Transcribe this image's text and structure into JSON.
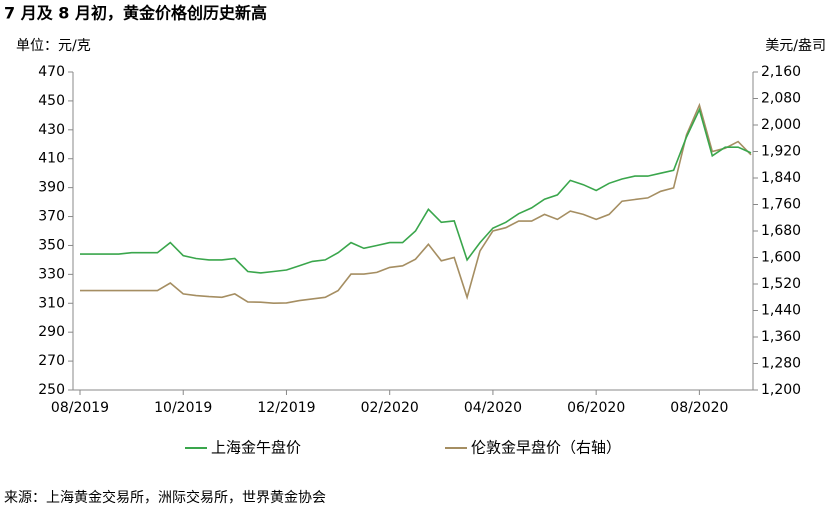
{
  "chart_data": {
    "type": "line",
    "title": "7 月及 8 月初，黄金价格创历史新高",
    "y_label": "单位：元/克",
    "y2_label": "美元/盎司",
    "source": "来源：上海黄金交易所，洲际交易所，世界黄金协会",
    "categories": [
      "08/2019",
      null,
      null,
      null,
      null,
      null,
      null,
      null,
      "10/2019",
      null,
      null,
      null,
      null,
      null,
      null,
      null,
      "12/2019",
      null,
      null,
      null,
      null,
      null,
      null,
      null,
      "02/2020",
      null,
      null,
      null,
      null,
      null,
      null,
      null,
      "04/2020",
      null,
      null,
      null,
      null,
      null,
      null,
      null,
      "06/2020",
      null,
      null,
      null,
      null,
      null,
      null,
      null,
      "08/2020",
      null,
      null,
      null,
      null
    ],
    "series": [
      {
        "name": "上海金午盘价",
        "color": "#3aa64c",
        "axis": "y",
        "values": [
          344,
          344,
          344,
          344,
          345,
          345,
          345,
          352,
          343,
          341,
          340,
          340,
          341,
          332,
          331,
          332,
          333,
          336,
          339,
          340,
          345,
          352,
          348,
          350,
          352,
          352,
          360,
          375,
          366,
          367,
          340,
          352,
          362,
          366,
          372,
          376,
          382,
          385,
          395,
          392,
          388,
          393,
          396,
          398,
          398,
          400,
          402,
          425,
          444,
          412,
          418,
          418,
          414
        ]
      },
      {
        "name": "伦敦金早盘价（右轴）",
        "color": "#a58e62",
        "axis": "y2",
        "values": [
          1500,
          1500,
          1500,
          1500,
          1500,
          1500,
          1500,
          1523,
          1490,
          1485,
          1482,
          1480,
          1490,
          1466,
          1465,
          1462,
          1463,
          1470,
          1475,
          1480,
          1500,
          1550,
          1550,
          1555,
          1570,
          1575,
          1595,
          1640,
          1590,
          1600,
          1480,
          1620,
          1680,
          1690,
          1710,
          1710,
          1730,
          1715,
          1740,
          1730,
          1715,
          1730,
          1770,
          1775,
          1780,
          1800,
          1810,
          1970,
          2060,
          1920,
          1930,
          1950,
          1910
        ]
      }
    ],
    "ylim": [
      250,
      470
    ],
    "yticks": [
      250,
      270,
      290,
      310,
      330,
      350,
      370,
      390,
      410,
      430,
      450,
      470
    ],
    "y2lim": [
      1200,
      2160
    ],
    "y2ticks": [
      {
        "value": 1200,
        "label": "1,200"
      },
      {
        "value": 1280,
        "label": "1,280"
      },
      {
        "value": 1360,
        "label": "1,360"
      },
      {
        "value": 1440,
        "label": "1,440"
      },
      {
        "value": 1520,
        "label": "1,520"
      },
      {
        "value": 1600,
        "label": "1,600"
      },
      {
        "value": 1680,
        "label": "1,680"
      },
      {
        "value": 1760,
        "label": "1,760"
      },
      {
        "value": 1840,
        "label": "1,840"
      },
      {
        "value": 1920,
        "label": "1,920"
      },
      {
        "value": 2000,
        "label": "2,000"
      },
      {
        "value": 2080,
        "label": "2,080"
      },
      {
        "value": 2160,
        "label": "2,160"
      }
    ],
    "grid": false
  }
}
